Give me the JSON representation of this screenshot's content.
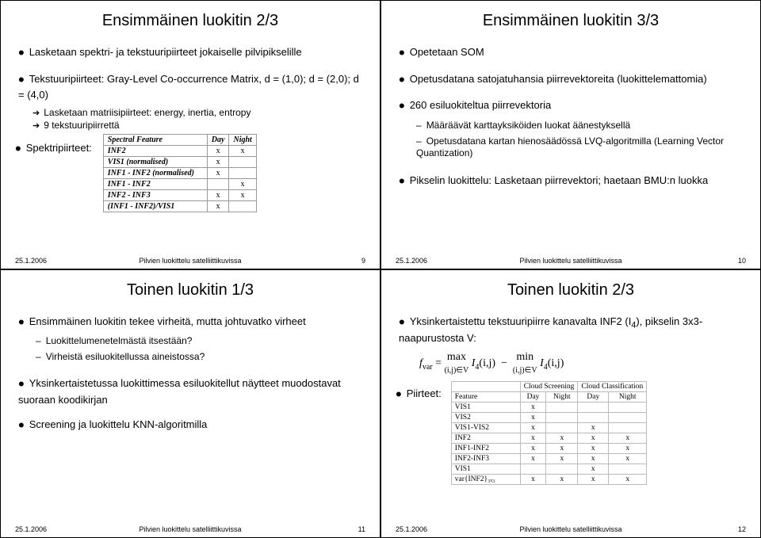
{
  "footer": {
    "date": "25.1.2006",
    "center": "Pilvien luokittelu satelliittikuvissa"
  },
  "slides": [
    {
      "title": "Ensimmäinen luokitin 2/3",
      "page": "9",
      "b1": "Lasketaan spektri- ja tekstuuripiirteet jokaiselle pilvipikselille",
      "b2": "Tekstuuripiirteet: Gray-Level Co-occurrence Matrix, d = (1,0); d = (2,0); d = (4,0)",
      "s1": "Lasketaan matriisipiirteet: energy, inertia, entropy",
      "s2": "9 tekstuuripiirrettä",
      "b3": "Spektripiirteet:",
      "tbl": {
        "head": [
          "Spectral Feature",
          "Day",
          "Night"
        ],
        "rows": [
          [
            "INF2",
            "x",
            "x"
          ],
          [
            "VIS1 (normalised)",
            "x",
            ""
          ],
          [
            "INF1 - INF2 (normalised)",
            "x",
            ""
          ],
          [
            "INF1 - INF2",
            "",
            "x"
          ],
          [
            "INF2 - INF3",
            "x",
            "x"
          ],
          [
            "(INF1 - INF2)/VIS1",
            "x",
            ""
          ]
        ]
      }
    },
    {
      "title": "Ensimmäinen luokitin 3/3",
      "page": "10",
      "b1": "Opetetaan SOM",
      "b2": "Opetusdatana satojatuhansia piirrevektoreita (luokittelemattomia)",
      "b3": "260 esiluokiteltua piirrevektoria",
      "d1": "Määräävät karttayksiköiden luokat äänestyksellä",
      "d2": "Opetusdatana kartan hienosäädössä LVQ-algoritmilla (Learning Vector Quantization)",
      "b4": "Pikselin luokittelu: Lasketaan piirrevektori; haetaan BMU:n luokka"
    },
    {
      "title": "Toinen luokitin 1/3",
      "page": "11",
      "b1": "Ensimmäinen luokitin tekee virheitä, mutta johtuvatko virheet",
      "d1": "Luokittelumenetelmästä itsestään?",
      "d2": "Virheistä esiluokitellussa aineistossa?",
      "b2": "Yksinkertaistetussa luokittimessa esiluokitellut näytteet muodostavat suoraan koodikirjan",
      "b3": "Screening ja luokittelu KNN-algoritmilla"
    },
    {
      "title": "Toinen luokitin 2/3",
      "page": "12",
      "b1lead": "Yksinkertaistettu tekstuuripiirre kanavalta INF2 (I",
      "b1sub": "4",
      "b1tail": "), pikselin 3x3-naapurustosta V:",
      "b2": "Piirteet:",
      "formula": {
        "lhs": "f",
        "lhs_sub": "var",
        "eq": " = ",
        "max": "max",
        "min": "min",
        "ctx": "(i,j)∈V",
        "I": "I",
        "Isub": "4",
        "arg": "(i,j)"
      },
      "tbl": {
        "groups": [
          "",
          "Cloud Screening",
          "Cloud Classification"
        ],
        "sub": [
          "Feature",
          "Day",
          "Night",
          "Day",
          "Night"
        ],
        "rows": [
          [
            "VIS1",
            "x",
            "",
            "",
            ""
          ],
          [
            "VIS2",
            "x",
            "",
            "",
            ""
          ],
          [
            "VIS1-VIS2",
            "x",
            "",
            "x",
            ""
          ],
          [
            "INF2",
            "x",
            "x",
            "x",
            "x"
          ],
          [
            "INF1-INF2",
            "x",
            "x",
            "x",
            "x"
          ],
          [
            "INF2-INF3",
            "x",
            "x",
            "x",
            "x"
          ],
          [
            "VIS1",
            "",
            "",
            "x",
            ""
          ],
          [
            "var{INF2}₃ₓ₃",
            "x",
            "x",
            "x",
            "x"
          ]
        ]
      }
    }
  ]
}
